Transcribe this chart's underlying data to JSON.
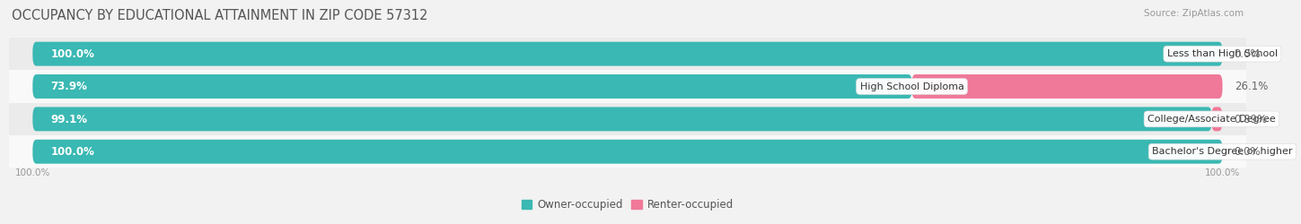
{
  "title": "OCCUPANCY BY EDUCATIONAL ATTAINMENT IN ZIP CODE 57312",
  "source": "Source: ZipAtlas.com",
  "categories": [
    "Less than High School",
    "High School Diploma",
    "College/Associate Degree",
    "Bachelor's Degree or higher"
  ],
  "owner_values": [
    100.0,
    73.9,
    99.1,
    100.0
  ],
  "renter_values": [
    0.0,
    26.1,
    0.89,
    0.0
  ],
  "owner_labels": [
    "100.0%",
    "73.9%",
    "99.1%",
    "100.0%"
  ],
  "renter_labels": [
    "0.0%",
    "26.1%",
    "0.89%",
    "0.0%"
  ],
  "owner_color": "#3ab8b3",
  "renter_color": "#f07898",
  "bg_color": "#f2f2f2",
  "row_bg_even": "#ebebeb",
  "row_bg_odd": "#f9f9f9",
  "title_fontsize": 10.5,
  "label_fontsize": 8,
  "value_fontsize": 8.5,
  "legend_fontsize": 8.5,
  "source_fontsize": 7.5,
  "bar_height": 0.72,
  "total_width": 100.0
}
